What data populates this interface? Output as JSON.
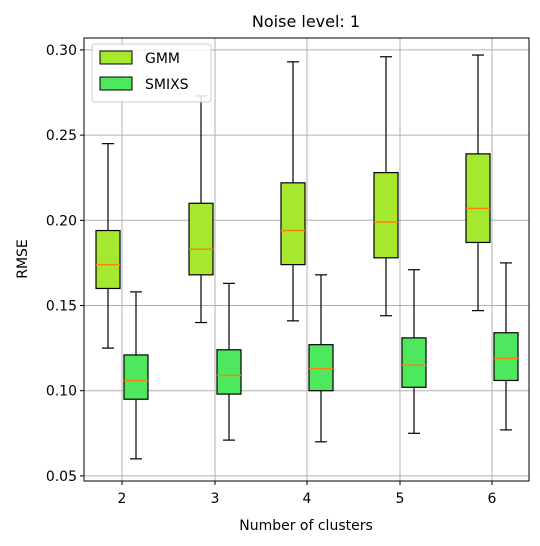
{
  "chart_data": {
    "type": "box",
    "title": "Noise level: 1",
    "xlabel": "Number of clusters",
    "ylabel": "RMSE",
    "categories": [
      "2",
      "3",
      "4",
      "5",
      "6"
    ],
    "ylim": [
      0.047,
      0.307
    ],
    "yticks": [
      0.05,
      0.1,
      0.15,
      0.2,
      0.25,
      0.3
    ],
    "ytick_labels": [
      "0.05",
      "0.10",
      "0.15",
      "0.20",
      "0.25",
      "0.30"
    ],
    "grid": true,
    "legend_position": "top-left",
    "median_color": "#ff7f0e",
    "series": [
      {
        "name": "GMM",
        "color": "#a6e82d",
        "boxes": [
          {
            "whisker_low": 0.125,
            "q1": 0.16,
            "median": 0.174,
            "q3": 0.194,
            "whisker_high": 0.245
          },
          {
            "whisker_low": 0.14,
            "q1": 0.168,
            "median": 0.183,
            "q3": 0.21,
            "whisker_high": 0.273
          },
          {
            "whisker_low": 0.141,
            "q1": 0.174,
            "median": 0.194,
            "q3": 0.222,
            "whisker_high": 0.293
          },
          {
            "whisker_low": 0.144,
            "q1": 0.178,
            "median": 0.199,
            "q3": 0.228,
            "whisker_high": 0.296
          },
          {
            "whisker_low": 0.147,
            "q1": 0.187,
            "median": 0.207,
            "q3": 0.239,
            "whisker_high": 0.297
          }
        ]
      },
      {
        "name": "SMIXS",
        "color": "#4ee85e",
        "boxes": [
          {
            "whisker_low": 0.06,
            "q1": 0.095,
            "median": 0.106,
            "q3": 0.121,
            "whisker_high": 0.158
          },
          {
            "whisker_low": 0.071,
            "q1": 0.098,
            "median": 0.109,
            "q3": 0.124,
            "whisker_high": 0.163
          },
          {
            "whisker_low": 0.07,
            "q1": 0.1,
            "median": 0.113,
            "q3": 0.127,
            "whisker_high": 0.168
          },
          {
            "whisker_low": 0.075,
            "q1": 0.102,
            "median": 0.115,
            "q3": 0.131,
            "whisker_high": 0.171
          },
          {
            "whisker_low": 0.077,
            "q1": 0.106,
            "median": 0.119,
            "q3": 0.134,
            "whisker_high": 0.175
          }
        ]
      }
    ]
  }
}
